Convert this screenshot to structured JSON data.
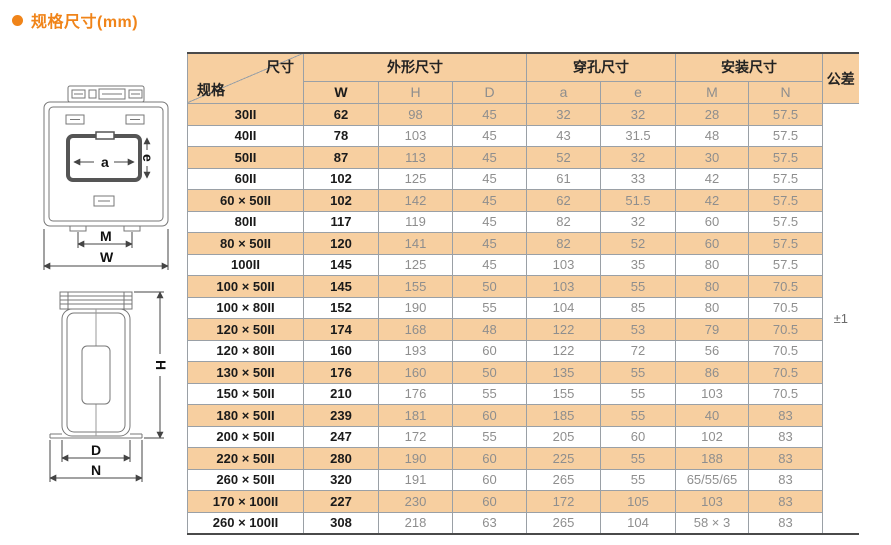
{
  "page": {
    "title": "规格尺寸(mm)"
  },
  "colors": {
    "accent_orange": "#f08419",
    "row_stripe": "#f7cfa0",
    "grid_gray": "#9aa0a6"
  },
  "table": {
    "corner": {
      "top_right": "尺寸",
      "bottom_left": "规格"
    },
    "groups": [
      {
        "label": "外形尺寸",
        "cols": [
          "W",
          "H",
          "D"
        ]
      },
      {
        "label": "穿孔尺寸",
        "cols": [
          "a",
          "e"
        ]
      },
      {
        "label": "安装尺寸",
        "cols": [
          "M",
          "N"
        ]
      }
    ],
    "tolerance_header": "公差",
    "tolerance_value": "±1",
    "rows": [
      {
        "spec": "30II",
        "values": [
          "62",
          "98",
          "45",
          "32",
          "32",
          "28",
          "57.5"
        ]
      },
      {
        "spec": "40II",
        "values": [
          "78",
          "103",
          "45",
          "43",
          "31.5",
          "48",
          "57.5"
        ]
      },
      {
        "spec": "50II",
        "values": [
          "87",
          "113",
          "45",
          "52",
          "32",
          "30",
          "57.5"
        ]
      },
      {
        "spec": "60II",
        "values": [
          "102",
          "125",
          "45",
          "61",
          "33",
          "42",
          "57.5"
        ]
      },
      {
        "spec": "60 × 50II",
        "values": [
          "102",
          "142",
          "45",
          "62",
          "51.5",
          "42",
          "57.5"
        ]
      },
      {
        "spec": "80II",
        "values": [
          "117",
          "119",
          "45",
          "82",
          "32",
          "60",
          "57.5"
        ]
      },
      {
        "spec": "80 × 50II",
        "values": [
          "120",
          "141",
          "45",
          "82",
          "52",
          "60",
          "57.5"
        ]
      },
      {
        "spec": "100II",
        "values": [
          "145",
          "125",
          "45",
          "103",
          "35",
          "80",
          "57.5"
        ]
      },
      {
        "spec": "100 × 50II",
        "values": [
          "145",
          "155",
          "50",
          "103",
          "55",
          "80",
          "70.5"
        ]
      },
      {
        "spec": "100 × 80II",
        "values": [
          "152",
          "190",
          "55",
          "104",
          "85",
          "80",
          "70.5"
        ]
      },
      {
        "spec": "120 × 50II",
        "values": [
          "174",
          "168",
          "48",
          "122",
          "53",
          "79",
          "70.5"
        ]
      },
      {
        "spec": "120 × 80II",
        "values": [
          "160",
          "193",
          "60",
          "122",
          "72",
          "56",
          "70.5"
        ]
      },
      {
        "spec": "130 × 50II",
        "values": [
          "176",
          "160",
          "50",
          "135",
          "55",
          "86",
          "70.5"
        ]
      },
      {
        "spec": "150 × 50II",
        "values": [
          "210",
          "176",
          "55",
          "155",
          "55",
          "103",
          "70.5"
        ]
      },
      {
        "spec": "180 × 50II",
        "values": [
          "239",
          "181",
          "60",
          "185",
          "55",
          "40",
          "83"
        ]
      },
      {
        "spec": "200 × 50II",
        "values": [
          "247",
          "172",
          "55",
          "205",
          "60",
          "102",
          "83"
        ]
      },
      {
        "spec": "220 × 50II",
        "values": [
          "280",
          "190",
          "60",
          "225",
          "55",
          "188",
          "83"
        ]
      },
      {
        "spec": "260 × 50II",
        "values": [
          "320",
          "191",
          "60",
          "265",
          "55",
          "65/55/65",
          "83"
        ]
      },
      {
        "spec": "170 × 100II",
        "values": [
          "227",
          "230",
          "60",
          "172",
          "105",
          "103",
          "83"
        ]
      },
      {
        "spec": "260 × 100II",
        "values": [
          "308",
          "218",
          "63",
          "265",
          "104",
          "58 × 3",
          "83"
        ]
      }
    ]
  },
  "diagrams": {
    "front": {
      "a": "a",
      "e": "e",
      "M": "M",
      "W": "W"
    },
    "side": {
      "H": "H",
      "D": "D",
      "N": "N"
    }
  }
}
